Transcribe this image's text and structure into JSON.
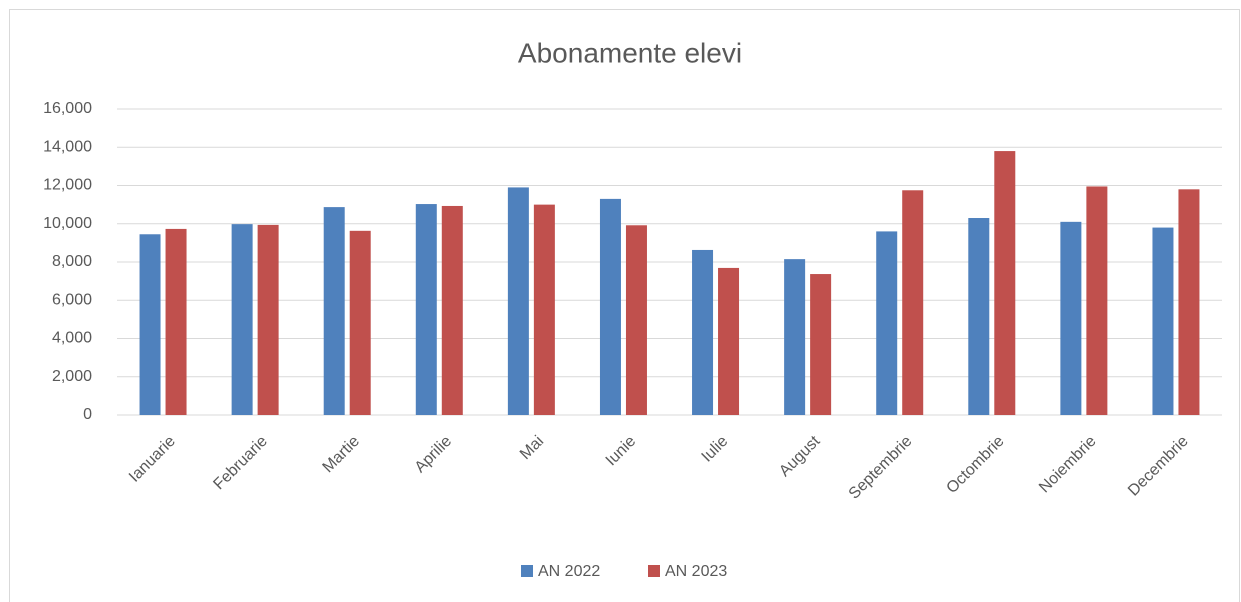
{
  "chart_data": {
    "type": "bar",
    "title": "Abonamente elevi",
    "categories": [
      "Ianuarie",
      "Februarie",
      "Martie",
      "Aprilie",
      "Mai",
      "Iunie",
      "Iulie",
      "August",
      "Septembrie",
      "Octombrie",
      "Noiembrie",
      "Decembrie"
    ],
    "series": [
      {
        "name": "AN 2022",
        "color": "#4f81bd",
        "values": [
          9450,
          9980,
          10870,
          11030,
          11900,
          11300,
          8630,
          8150,
          9600,
          10300,
          10100,
          9800
        ]
      },
      {
        "name": "AN 2023",
        "color": "#c0504d",
        "values": [
          9730,
          9940,
          9630,
          10930,
          11000,
          9920,
          7690,
          7370,
          11750,
          13800,
          11950,
          11800
        ]
      }
    ],
    "ylim": [
      0,
      16000
    ],
    "yticks": [
      0,
      {
        "value": 2000,
        "label": "2,000"
      },
      {
        "value": 4000,
        "label": "4,000"
      },
      {
        "value": 6000,
        "label": "6,000"
      },
      {
        "value": 8000,
        "label": "8,000"
      },
      {
        "value": 10000,
        "label": "10,000"
      },
      {
        "value": 12000,
        "label": "12,000"
      },
      {
        "value": 14000,
        "label": "14,000"
      },
      {
        "value": 16000,
        "label": "16,000"
      }
    ],
    "grid": true,
    "legend": "bottom"
  }
}
